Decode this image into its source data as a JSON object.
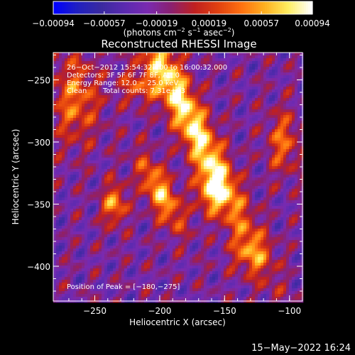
{
  "chart_data": {
    "type": "heatmap",
    "title": "Reconstructed RHESSI Image",
    "xlabel": "Heliocentric X (arcsec)",
    "ylabel": "Heliocentric Y (arcsec)",
    "xlim": [
      -282,
      -90
    ],
    "ylim": [
      -428,
      -228
    ],
    "xticks": [
      {
        "value": -250,
        "label": "−250"
      },
      {
        "value": -200,
        "label": "−200"
      },
      {
        "value": -150,
        "label": "−150"
      },
      {
        "value": -100,
        "label": "−100"
      }
    ],
    "yticks": [
      {
        "value": -250,
        "label": "−250"
      },
      {
        "value": -300,
        "label": "−300"
      },
      {
        "value": -350,
        "label": "−350"
      },
      {
        "value": -400,
        "label": "−400"
      }
    ],
    "colorbar": {
      "min": -0.00094,
      "max": 0.00094,
      "ticks": [
        {
          "value": -0.00094,
          "label": "−0.00094"
        },
        {
          "value": -0.00057,
          "label": "−0.00057"
        },
        {
          "value": -0.00019,
          "label": "−0.00019"
        },
        {
          "value": 0.00019,
          "label": "0.00019"
        },
        {
          "value": 0.00057,
          "label": "0.00057"
        },
        {
          "value": 0.00094,
          "label": "0.00094"
        }
      ],
      "unit_prefix": "(photons cm",
      "unit_sup1": "−2",
      "unit_mid1": " s",
      "unit_sup2": "−1",
      "unit_mid2": " asec",
      "unit_sup3": "−2",
      "unit_suffix": ")",
      "colors": [
        "#0000ff",
        "#2020c0",
        "#3a2aa0",
        "#5a2ab0",
        "#7a2ab0",
        "#8a2070",
        "#c02020",
        "#e04010",
        "#ff7010",
        "#ffb020",
        "#ffee60",
        "#ffffff"
      ]
    },
    "annotations": {
      "time_range": "26−Oct−2012 15:54:32.000 to 16:00:32.000",
      "detectors": "Detectors: 3F 5F 6F 7F 8F, Att 0",
      "energy_range": "Energy Range: 12.0 − 25.0 keV",
      "clean_label": "Clean",
      "total_counts": "Total counts: 7.31e+03",
      "peak_position": "Position of Peak = [−180,−275]"
    },
    "peak": {
      "x": -180,
      "y": -275
    },
    "grid": false
  },
  "footer": {
    "timestamp": "15−May−2022 16:24"
  }
}
